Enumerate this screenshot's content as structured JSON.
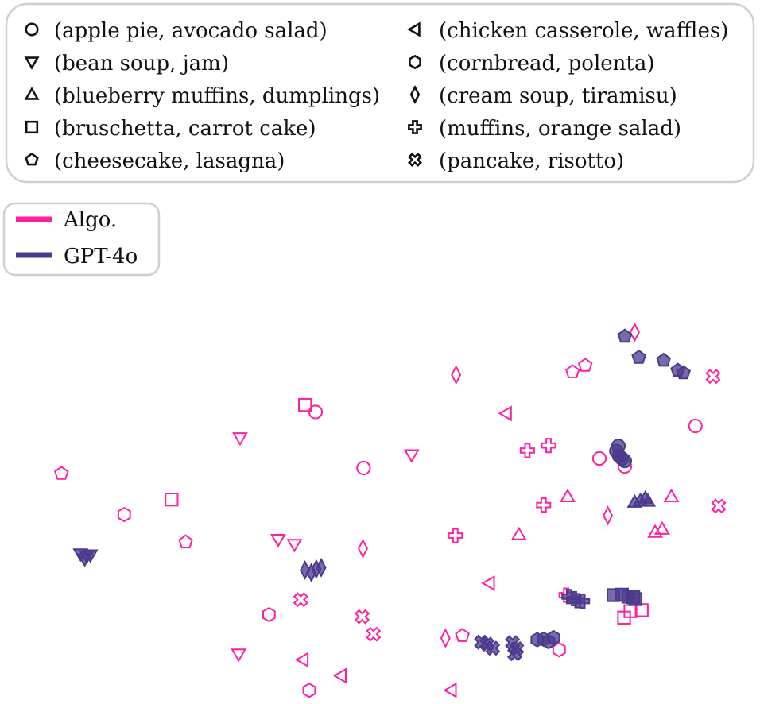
{
  "chart_data": {
    "type": "scatter",
    "title": "",
    "xlabel": "",
    "ylabel": "",
    "grid": false,
    "xlim": [
      0,
      100
    ],
    "ylim": [
      0,
      100
    ],
    "pair_legend_placement": "top",
    "method_legend_placement": "upper-left",
    "pairs": [
      {
        "label": "(apple pie, avocado salad)",
        "marker": "circle"
      },
      {
        "label": "(bean soup, jam)",
        "marker": "triangle-down"
      },
      {
        "label": "(blueberry muffins, dumplings)",
        "marker": "triangle-up"
      },
      {
        "label": "(bruschetta, carrot cake)",
        "marker": "square"
      },
      {
        "label": "(cheesecake, lasagna)",
        "marker": "pentagon"
      },
      {
        "label": "(chicken casserole, waffles)",
        "marker": "triangle-left"
      },
      {
        "label": "(cornbread, polenta)",
        "marker": "hexagon"
      },
      {
        "label": "(cream soup, tiramisu)",
        "marker": "diamond"
      },
      {
        "label": "(muffins, orange salad)",
        "marker": "plus"
      },
      {
        "label": "(pancake, risotto)",
        "marker": "x"
      }
    ],
    "series": [
      {
        "name": "Algo.",
        "color": "#ff1f9f",
        "filled": false,
        "points": [
          {
            "pair": 0,
            "x": 40.2,
            "y": 56.6
          },
          {
            "pair": 0,
            "x": 47.0,
            "y": 45.4
          },
          {
            "pair": 0,
            "x": 94.0,
            "y": 53.8
          },
          {
            "pair": 0,
            "x": 80.4,
            "y": 47.3
          },
          {
            "pair": 0,
            "x": 84.0,
            "y": 45.7
          },
          {
            "pair": 1,
            "x": 29.5,
            "y": 51.4
          },
          {
            "pair": 1,
            "x": 53.8,
            "y": 48.0
          },
          {
            "pair": 1,
            "x": 34.9,
            "y": 31.1
          },
          {
            "pair": 1,
            "x": 37.2,
            "y": 30.1
          },
          {
            "pair": 1,
            "x": 29.3,
            "y": 8.2
          },
          {
            "pair": 2,
            "x": 75.9,
            "y": 39.7
          },
          {
            "pair": 2,
            "x": 90.6,
            "y": 39.7
          },
          {
            "pair": 2,
            "x": 69.0,
            "y": 32.1
          },
          {
            "pair": 2,
            "x": 89.3,
            "y": 33.2
          },
          {
            "pair": 2,
            "x": 88.3,
            "y": 32.6
          },
          {
            "pair": 3,
            "x": 38.7,
            "y": 58.0
          },
          {
            "pair": 3,
            "x": 19.8,
            "y": 39.1
          },
          {
            "pair": 3,
            "x": 84.8,
            "y": 16.8
          },
          {
            "pair": 3,
            "x": 86.4,
            "y": 17.0
          },
          {
            "pair": 3,
            "x": 83.9,
            "y": 15.5
          },
          {
            "pair": 4,
            "x": 4.2,
            "y": 44.3
          },
          {
            "pair": 4,
            "x": 21.8,
            "y": 30.6
          },
          {
            "pair": 4,
            "x": 78.4,
            "y": 65.9
          },
          {
            "pair": 4,
            "x": 76.6,
            "y": 64.6
          },
          {
            "pair": 4,
            "x": 61.0,
            "y": 11.9
          },
          {
            "pair": 5,
            "x": 67.2,
            "y": 56.3
          },
          {
            "pair": 5,
            "x": 64.8,
            "y": 22.4
          },
          {
            "pair": 5,
            "x": 38.4,
            "y": 7.1
          },
          {
            "pair": 5,
            "x": 43.8,
            "y": 3.9
          },
          {
            "pair": 5,
            "x": 59.4,
            "y": 1.0
          },
          {
            "pair": 6,
            "x": 13.1,
            "y": 36.1
          },
          {
            "pair": 6,
            "x": 33.6,
            "y": 16.1
          },
          {
            "pair": 6,
            "x": 39.3,
            "y": 1.0
          },
          {
            "pair": 6,
            "x": 74.7,
            "y": 9.1
          },
          {
            "pair": 7,
            "x": 60.1,
            "y": 64.0
          },
          {
            "pair": 7,
            "x": 85.4,
            "y": 72.5
          },
          {
            "pair": 7,
            "x": 81.6,
            "y": 35.9
          },
          {
            "pair": 7,
            "x": 46.9,
            "y": 29.3
          },
          {
            "pair": 7,
            "x": 58.6,
            "y": 11.4
          },
          {
            "pair": 8,
            "x": 70.2,
            "y": 48.9
          },
          {
            "pair": 8,
            "x": 73.2,
            "y": 49.9
          },
          {
            "pair": 8,
            "x": 72.5,
            "y": 38.0
          },
          {
            "pair": 8,
            "x": 60.0,
            "y": 31.9
          },
          {
            "pair": 8,
            "x": 75.7,
            "y": 20.0
          },
          {
            "pair": 9,
            "x": 96.5,
            "y": 63.7
          },
          {
            "pair": 9,
            "x": 97.3,
            "y": 37.8
          },
          {
            "pair": 9,
            "x": 38.1,
            "y": 19.1
          },
          {
            "pair": 9,
            "x": 46.8,
            "y": 15.7
          },
          {
            "pair": 9,
            "x": 48.4,
            "y": 12.2
          }
        ]
      },
      {
        "name": "GPT-4o",
        "color": "#4b3a8c",
        "filled": true,
        "points": [
          {
            "pair": 0,
            "x": 83.1,
            "y": 49.8
          },
          {
            "pair": 0,
            "x": 82.8,
            "y": 48.8
          },
          {
            "pair": 0,
            "x": 83.2,
            "y": 47.8
          },
          {
            "pair": 0,
            "x": 83.6,
            "y": 47.3
          },
          {
            "pair": 0,
            "x": 84.0,
            "y": 46.8
          },
          {
            "pair": 1,
            "x": 6.9,
            "y": 28.2
          },
          {
            "pair": 1,
            "x": 7.5,
            "y": 27.2
          },
          {
            "pair": 1,
            "x": 8.3,
            "y": 28.0
          },
          {
            "pair": 1,
            "x": 7.8,
            "y": 27.8
          },
          {
            "pair": 2,
            "x": 85.4,
            "y": 38.6
          },
          {
            "pair": 2,
            "x": 86.2,
            "y": 38.9
          },
          {
            "pair": 2,
            "x": 86.9,
            "y": 39.4
          },
          {
            "pair": 2,
            "x": 87.3,
            "y": 38.8
          },
          {
            "pair": 3,
            "x": 82.4,
            "y": 20.0
          },
          {
            "pair": 3,
            "x": 83.6,
            "y": 20.1
          },
          {
            "pair": 3,
            "x": 84.5,
            "y": 19.7
          },
          {
            "pair": 3,
            "x": 85.2,
            "y": 19.6
          },
          {
            "pair": 3,
            "x": 85.5,
            "y": 19.2
          },
          {
            "pair": 4,
            "x": 84.0,
            "y": 71.7
          },
          {
            "pair": 4,
            "x": 86.0,
            "y": 67.5
          },
          {
            "pair": 4,
            "x": 89.5,
            "y": 66.9
          },
          {
            "pair": 4,
            "x": 91.5,
            "y": 64.9
          },
          {
            "pair": 4,
            "x": 92.3,
            "y": 64.4
          },
          {
            "pair": 6,
            "x": 71.6,
            "y": 11.1
          },
          {
            "pair": 6,
            "x": 72.5,
            "y": 11.2
          },
          {
            "pair": 6,
            "x": 73.2,
            "y": 10.7
          },
          {
            "pair": 6,
            "x": 73.9,
            "y": 11.5
          },
          {
            "pair": 7,
            "x": 38.7,
            "y": 25.0
          },
          {
            "pair": 7,
            "x": 39.6,
            "y": 24.5
          },
          {
            "pair": 7,
            "x": 40.3,
            "y": 25.2
          },
          {
            "pair": 7,
            "x": 41.0,
            "y": 25.5
          },
          {
            "pair": 8,
            "x": 76.1,
            "y": 19.7
          },
          {
            "pair": 8,
            "x": 76.8,
            "y": 19.3
          },
          {
            "pair": 8,
            "x": 77.3,
            "y": 18.9
          },
          {
            "pair": 8,
            "x": 78.0,
            "y": 18.8
          },
          {
            "pair": 9,
            "x": 63.7,
            "y": 10.6
          },
          {
            "pair": 9,
            "x": 64.5,
            "y": 10.2
          },
          {
            "pair": 9,
            "x": 65.3,
            "y": 9.4
          },
          {
            "pair": 9,
            "x": 68.1,
            "y": 10.5
          },
          {
            "pair": 9,
            "x": 68.7,
            "y": 9.3
          },
          {
            "pair": 9,
            "x": 68.4,
            "y": 8.3
          }
        ]
      }
    ]
  }
}
